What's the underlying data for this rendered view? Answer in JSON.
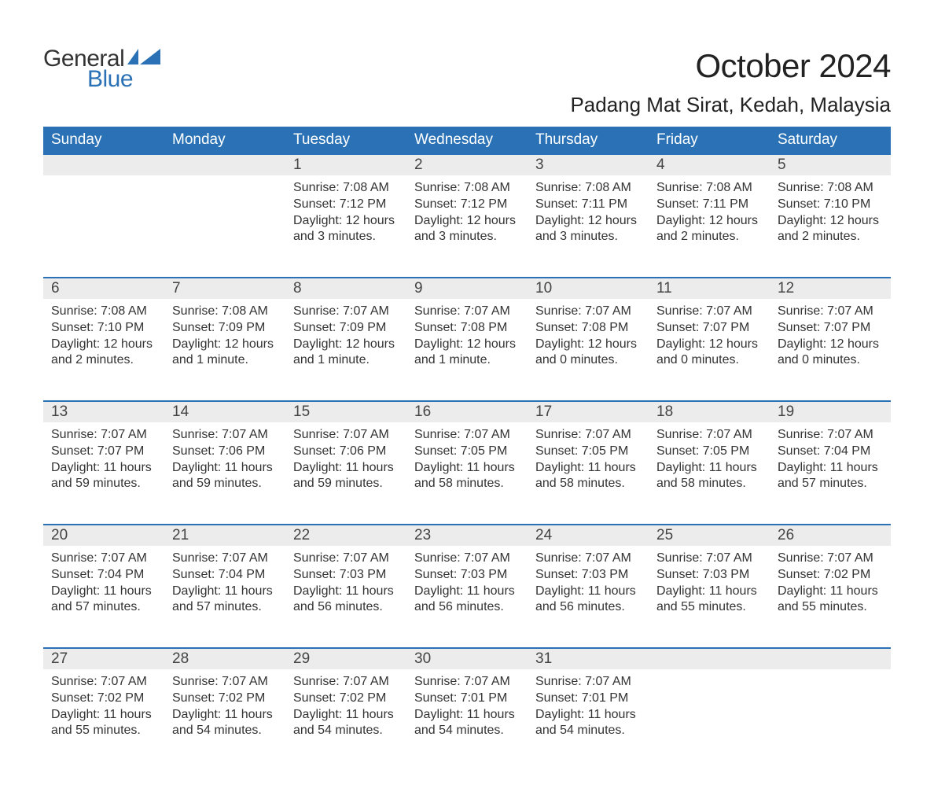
{
  "brand": {
    "name_part1": "General",
    "name_part2": "Blue",
    "text_color": "#333333",
    "accent_color": "#2a72b5"
  },
  "title": "October 2024",
  "location": "Padang Mat Sirat, Kedah, Malaysia",
  "colors": {
    "header_bg": "#2a72b5",
    "header_text": "#ffffff",
    "daynum_bg": "#ececec",
    "daynum_border": "#2a72b5",
    "body_text": "#333333",
    "page_bg": "#ffffff"
  },
  "fonts": {
    "title_size_pt": 32,
    "location_size_pt": 20,
    "header_size_pt": 14,
    "daynum_size_pt": 14,
    "body_size_pt": 12
  },
  "weekdays": [
    "Sunday",
    "Monday",
    "Tuesday",
    "Wednesday",
    "Thursday",
    "Friday",
    "Saturday"
  ],
  "weeks": [
    {
      "days": [
        null,
        null,
        {
          "num": "1",
          "sunrise": "Sunrise: 7:08 AM",
          "sunset": "Sunset: 7:12 PM",
          "daylight1": "Daylight: 12 hours",
          "daylight2": "and 3 minutes."
        },
        {
          "num": "2",
          "sunrise": "Sunrise: 7:08 AM",
          "sunset": "Sunset: 7:12 PM",
          "daylight1": "Daylight: 12 hours",
          "daylight2": "and 3 minutes."
        },
        {
          "num": "3",
          "sunrise": "Sunrise: 7:08 AM",
          "sunset": "Sunset: 7:11 PM",
          "daylight1": "Daylight: 12 hours",
          "daylight2": "and 3 minutes."
        },
        {
          "num": "4",
          "sunrise": "Sunrise: 7:08 AM",
          "sunset": "Sunset: 7:11 PM",
          "daylight1": "Daylight: 12 hours",
          "daylight2": "and 2 minutes."
        },
        {
          "num": "5",
          "sunrise": "Sunrise: 7:08 AM",
          "sunset": "Sunset: 7:10 PM",
          "daylight1": "Daylight: 12 hours",
          "daylight2": "and 2 minutes."
        }
      ]
    },
    {
      "days": [
        {
          "num": "6",
          "sunrise": "Sunrise: 7:08 AM",
          "sunset": "Sunset: 7:10 PM",
          "daylight1": "Daylight: 12 hours",
          "daylight2": "and 2 minutes."
        },
        {
          "num": "7",
          "sunrise": "Sunrise: 7:08 AM",
          "sunset": "Sunset: 7:09 PM",
          "daylight1": "Daylight: 12 hours",
          "daylight2": "and 1 minute."
        },
        {
          "num": "8",
          "sunrise": "Sunrise: 7:07 AM",
          "sunset": "Sunset: 7:09 PM",
          "daylight1": "Daylight: 12 hours",
          "daylight2": "and 1 minute."
        },
        {
          "num": "9",
          "sunrise": "Sunrise: 7:07 AM",
          "sunset": "Sunset: 7:08 PM",
          "daylight1": "Daylight: 12 hours",
          "daylight2": "and 1 minute."
        },
        {
          "num": "10",
          "sunrise": "Sunrise: 7:07 AM",
          "sunset": "Sunset: 7:08 PM",
          "daylight1": "Daylight: 12 hours",
          "daylight2": "and 0 minutes."
        },
        {
          "num": "11",
          "sunrise": "Sunrise: 7:07 AM",
          "sunset": "Sunset: 7:07 PM",
          "daylight1": "Daylight: 12 hours",
          "daylight2": "and 0 minutes."
        },
        {
          "num": "12",
          "sunrise": "Sunrise: 7:07 AM",
          "sunset": "Sunset: 7:07 PM",
          "daylight1": "Daylight: 12 hours",
          "daylight2": "and 0 minutes."
        }
      ]
    },
    {
      "days": [
        {
          "num": "13",
          "sunrise": "Sunrise: 7:07 AM",
          "sunset": "Sunset: 7:07 PM",
          "daylight1": "Daylight: 11 hours",
          "daylight2": "and 59 minutes."
        },
        {
          "num": "14",
          "sunrise": "Sunrise: 7:07 AM",
          "sunset": "Sunset: 7:06 PM",
          "daylight1": "Daylight: 11 hours",
          "daylight2": "and 59 minutes."
        },
        {
          "num": "15",
          "sunrise": "Sunrise: 7:07 AM",
          "sunset": "Sunset: 7:06 PM",
          "daylight1": "Daylight: 11 hours",
          "daylight2": "and 59 minutes."
        },
        {
          "num": "16",
          "sunrise": "Sunrise: 7:07 AM",
          "sunset": "Sunset: 7:05 PM",
          "daylight1": "Daylight: 11 hours",
          "daylight2": "and 58 minutes."
        },
        {
          "num": "17",
          "sunrise": "Sunrise: 7:07 AM",
          "sunset": "Sunset: 7:05 PM",
          "daylight1": "Daylight: 11 hours",
          "daylight2": "and 58 minutes."
        },
        {
          "num": "18",
          "sunrise": "Sunrise: 7:07 AM",
          "sunset": "Sunset: 7:05 PM",
          "daylight1": "Daylight: 11 hours",
          "daylight2": "and 58 minutes."
        },
        {
          "num": "19",
          "sunrise": "Sunrise: 7:07 AM",
          "sunset": "Sunset: 7:04 PM",
          "daylight1": "Daylight: 11 hours",
          "daylight2": "and 57 minutes."
        }
      ]
    },
    {
      "days": [
        {
          "num": "20",
          "sunrise": "Sunrise: 7:07 AM",
          "sunset": "Sunset: 7:04 PM",
          "daylight1": "Daylight: 11 hours",
          "daylight2": "and 57 minutes."
        },
        {
          "num": "21",
          "sunrise": "Sunrise: 7:07 AM",
          "sunset": "Sunset: 7:04 PM",
          "daylight1": "Daylight: 11 hours",
          "daylight2": "and 57 minutes."
        },
        {
          "num": "22",
          "sunrise": "Sunrise: 7:07 AM",
          "sunset": "Sunset: 7:03 PM",
          "daylight1": "Daylight: 11 hours",
          "daylight2": "and 56 minutes."
        },
        {
          "num": "23",
          "sunrise": "Sunrise: 7:07 AM",
          "sunset": "Sunset: 7:03 PM",
          "daylight1": "Daylight: 11 hours",
          "daylight2": "and 56 minutes."
        },
        {
          "num": "24",
          "sunrise": "Sunrise: 7:07 AM",
          "sunset": "Sunset: 7:03 PM",
          "daylight1": "Daylight: 11 hours",
          "daylight2": "and 56 minutes."
        },
        {
          "num": "25",
          "sunrise": "Sunrise: 7:07 AM",
          "sunset": "Sunset: 7:03 PM",
          "daylight1": "Daylight: 11 hours",
          "daylight2": "and 55 minutes."
        },
        {
          "num": "26",
          "sunrise": "Sunrise: 7:07 AM",
          "sunset": "Sunset: 7:02 PM",
          "daylight1": "Daylight: 11 hours",
          "daylight2": "and 55 minutes."
        }
      ]
    },
    {
      "days": [
        {
          "num": "27",
          "sunrise": "Sunrise: 7:07 AM",
          "sunset": "Sunset: 7:02 PM",
          "daylight1": "Daylight: 11 hours",
          "daylight2": "and 55 minutes."
        },
        {
          "num": "28",
          "sunrise": "Sunrise: 7:07 AM",
          "sunset": "Sunset: 7:02 PM",
          "daylight1": "Daylight: 11 hours",
          "daylight2": "and 54 minutes."
        },
        {
          "num": "29",
          "sunrise": "Sunrise: 7:07 AM",
          "sunset": "Sunset: 7:02 PM",
          "daylight1": "Daylight: 11 hours",
          "daylight2": "and 54 minutes."
        },
        {
          "num": "30",
          "sunrise": "Sunrise: 7:07 AM",
          "sunset": "Sunset: 7:01 PM",
          "daylight1": "Daylight: 11 hours",
          "daylight2": "and 54 minutes."
        },
        {
          "num": "31",
          "sunrise": "Sunrise: 7:07 AM",
          "sunset": "Sunset: 7:01 PM",
          "daylight1": "Daylight: 11 hours",
          "daylight2": "and 54 minutes."
        },
        null,
        null
      ]
    }
  ]
}
